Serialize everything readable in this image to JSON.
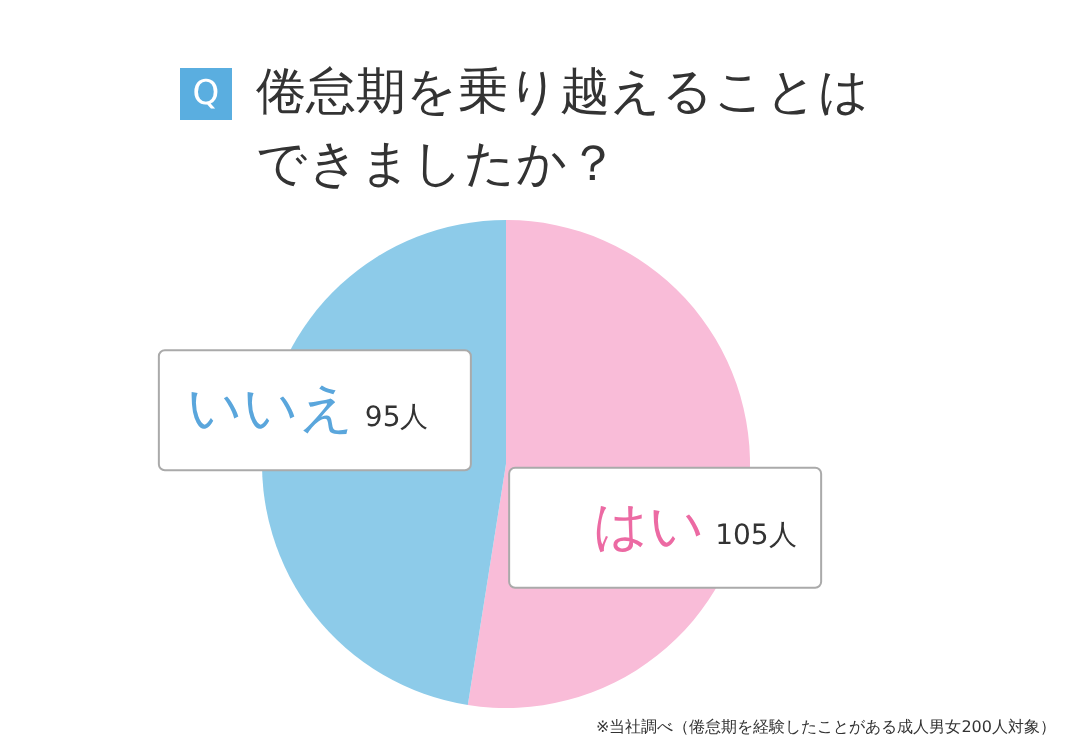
{
  "chart_data": {
    "type": "pie",
    "title": "倦怠期を乗り越えることはできましたか？",
    "categories": [
      "はい",
      "いいえ"
    ],
    "values": [
      105,
      95
    ],
    "colors": [
      "#f9bcd8",
      "#8dcbe9"
    ],
    "value_labels": [
      "105人",
      "95人"
    ],
    "annotations": [
      "Q",
      "※当社調べ（倦怠期を経験したことがある成人男女200人対象）"
    ]
  }
}
